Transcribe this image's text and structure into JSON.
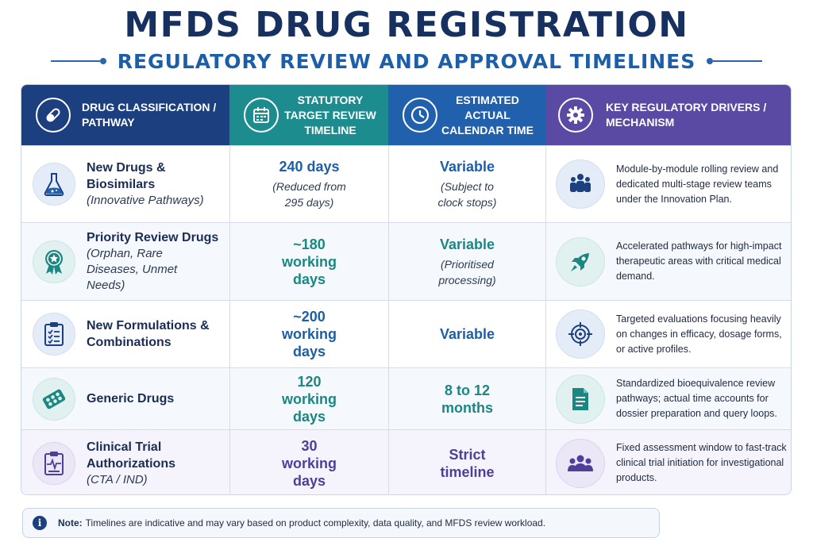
{
  "title": "MFDS DRUG REGISTRATION",
  "subtitle": "REGULATORY REVIEW AND APPROVAL TIMELINES",
  "headers": {
    "classification": "DRUG CLASSIFICATION / PATHWAY",
    "statutory": "STATUTORY TARGET REVIEW TIMELINE",
    "estimated": "ESTIMATED ACTUAL CALENDAR TIME",
    "drivers": "KEY REGULATORY DRIVERS / MECHANISM"
  },
  "header_icons": [
    "capsule-icon",
    "calendar-icon",
    "clock-icon",
    "gear-icon"
  ],
  "rows": [
    {
      "name": "New Drugs & Biosimilars",
      "sub": "(Innovative Pathways)",
      "icon": "flask-icon",
      "statutory_main": "240 days",
      "statutory_note": "(Reduced from 295 days)",
      "estimated_main": "Variable",
      "estimated_note": "(Subject to clock stops)",
      "driver_icon": "team-icon",
      "driver": "Module-by-module rolling review and dedicated multi-stage review teams under the Innovation Plan."
    },
    {
      "name": "Priority Review Drugs",
      "sub": "(Orphan, Rare Diseases, Unmet Needs)",
      "icon": "award-ribbon-icon",
      "statutory_main": "~180 working days",
      "statutory_note": "",
      "estimated_main": "Variable",
      "estimated_note": "(Prioritised processing)",
      "driver_icon": "rocket-icon",
      "driver": "Accelerated pathways for high-impact therapeutic areas with critical medical demand."
    },
    {
      "name": "New Formulations & Combinations",
      "sub": "",
      "icon": "clipboard-checklist-icon",
      "statutory_main": "~200 working days",
      "statutory_note": "",
      "estimated_main": "Variable",
      "estimated_note": "",
      "driver_icon": "target-icon",
      "driver": "Targeted evaluations focusing heavily on changes in efficacy, dosage forms, or active profiles."
    },
    {
      "name": "Generic Drugs",
      "sub": "",
      "icon": "pill-pack-icon",
      "statutory_main": "120 working days",
      "statutory_note": "",
      "estimated_main": "8 to 12 months",
      "estimated_note": "",
      "driver_icon": "document-icon",
      "driver": "Standardized bioequivalence review pathways; actual time accounts for dossier preparation and query loops."
    },
    {
      "name": "Clinical Trial Authorizations",
      "sub": "(CTA / IND)",
      "icon": "clipboard-pulse-icon",
      "statutory_main": "30 working days",
      "statutory_note": "",
      "estimated_main": "Strict timeline",
      "estimated_note": "",
      "driver_icon": "group-icon",
      "driver": "Fixed assessment window to fast-track clinical trial initiation for investigational products."
    }
  ],
  "note": {
    "label": "Note:",
    "text": "Timelines are indicative and may vary based on product complexity, data quality, and MFDS review workload."
  },
  "colors": {
    "navy": "#1c3f7f",
    "teal": "#1c8c8f",
    "blue": "#2160ad",
    "purple": "#5a4aa3"
  }
}
